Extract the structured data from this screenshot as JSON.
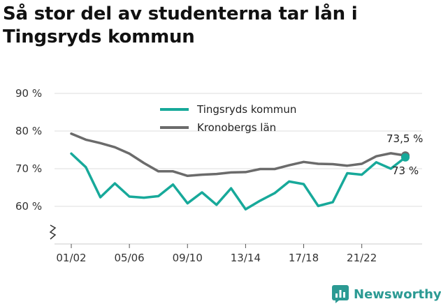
{
  "title_line1": "Så stor del av studenterna tar lån i",
  "title_line2": "Tingsryds kommun",
  "brand": "Newsworthy",
  "colors": {
    "tingsryd": "#17a99a",
    "kronoberg": "#6b6b6b",
    "grid": "#dddddd",
    "brand": "#2b9a93"
  },
  "chart_data": {
    "type": "line",
    "title": "Så stor del av studenterna tar lån i Tingsryds kommun",
    "ylabel": "",
    "xlabel": "",
    "ylim": [
      50,
      90
    ],
    "yticks": [
      60,
      70,
      80,
      90
    ],
    "ytick_labels": [
      "60 %",
      "70 %",
      "80 %",
      "90 %"
    ],
    "y_axis_break": true,
    "legend_position": "top-center",
    "grid": true,
    "x": [
      "01/02",
      "02/03",
      "03/04",
      "04/05",
      "05/06",
      "06/07",
      "07/08",
      "08/09",
      "09/10",
      "10/11",
      "11/12",
      "12/13",
      "13/14",
      "14/15",
      "15/16",
      "16/17",
      "17/18",
      "18/19",
      "19/20",
      "20/21",
      "21/22",
      "22/23",
      "23/24",
      "24/25"
    ],
    "xtick_labels": [
      "01/02",
      "05/06",
      "09/10",
      "13/14",
      "17/18",
      "21/22"
    ],
    "series": [
      {
        "name": "Tingsryds kommun",
        "color": "#17a99a",
        "values": [
          74.0,
          70.4,
          62.4,
          66.1,
          62.6,
          62.3,
          62.7,
          65.8,
          60.8,
          63.7,
          60.4,
          64.8,
          59.2,
          61.5,
          63.5,
          66.6,
          65.9,
          60.1,
          61.1,
          68.8,
          68.4,
          71.7,
          70.0,
          73.0
        ],
        "end_label": "73 %"
      },
      {
        "name": "Kronobergs län",
        "color": "#6b6b6b",
        "values": [
          79.3,
          77.7,
          76.8,
          75.7,
          74.0,
          71.5,
          69.3,
          69.3,
          68.1,
          68.4,
          68.6,
          69.0,
          69.1,
          69.9,
          69.9,
          70.9,
          71.8,
          71.3,
          71.2,
          70.8,
          71.3,
          73.3,
          74.1,
          73.5
        ],
        "end_label": "73,5 %"
      }
    ]
  }
}
